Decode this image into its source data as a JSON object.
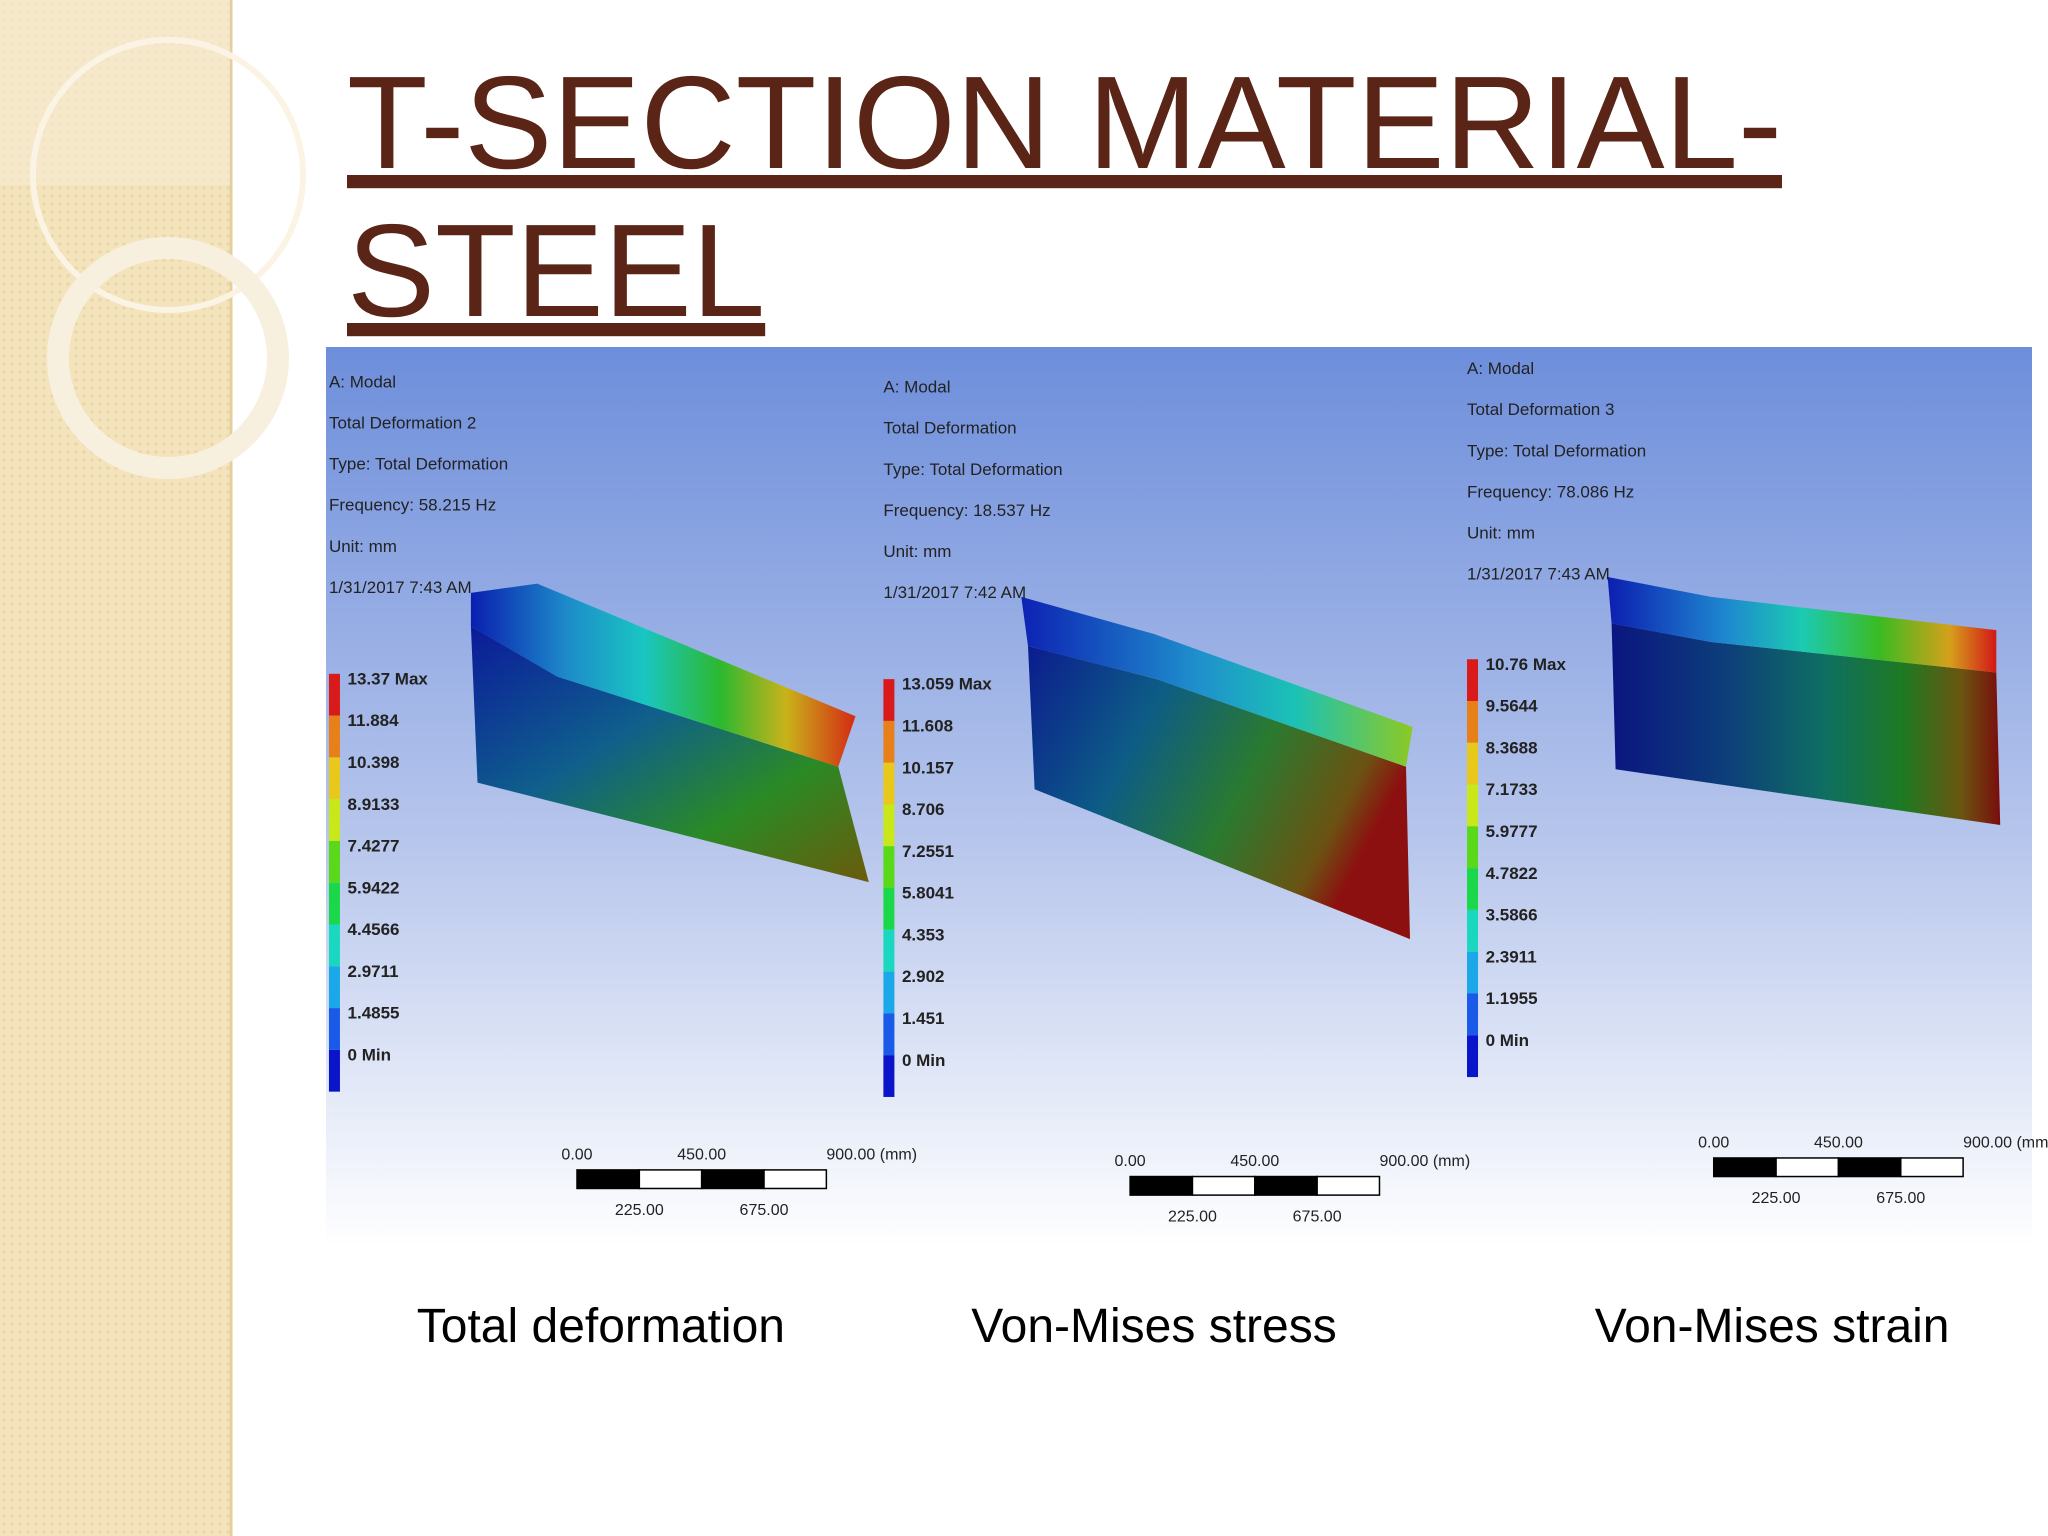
{
  "title": {
    "line1": "T-SECTION MATERIAL-",
    "line2": "STEEL"
  },
  "panels": [
    {
      "header": [
        "A: Modal",
        "Total Deformation 2",
        "Type: Total Deformation",
        "Frequency: 58.215 Hz",
        "Unit: mm",
        "1/31/2017 7:43 AM"
      ],
      "legend": [
        "13.37 Max",
        "11.884",
        "10.398",
        "8.9133",
        "7.4277",
        "5.9422",
        "4.4566",
        "2.9711",
        "1.4855",
        "0 Min"
      ],
      "scale_top": [
        "0.00",
        "450.00",
        "900.00 (mm)"
      ],
      "scale_bottom": [
        "225.00",
        "675.00"
      ],
      "caption": "Total deformation"
    },
    {
      "header": [
        "A: Modal",
        "Total Deformation",
        "Type: Total Deformation",
        "Frequency: 18.537 Hz",
        "Unit: mm",
        "1/31/2017 7:42 AM"
      ],
      "legend": [
        "13.059 Max",
        "11.608",
        "10.157",
        "8.706",
        "7.2551",
        "5.8041",
        "4.353",
        "2.902",
        "1.451",
        "0 Min"
      ],
      "scale_top": [
        "0.00",
        "450.00",
        "900.00 (mm)"
      ],
      "scale_bottom": [
        "225.00",
        "675.00"
      ],
      "caption": "Von-Mises stress"
    },
    {
      "header": [
        "A: Modal",
        "Total Deformation 3",
        "Type: Total Deformation",
        "Frequency: 78.086 Hz",
        "Unit: mm",
        "1/31/2017 7:43 AM"
      ],
      "legend": [
        "10.76 Max",
        "9.5644",
        "8.3688",
        "7.1733",
        "5.9777",
        "4.7822",
        "3.5866",
        "2.3911",
        "1.1955",
        "0 Min"
      ],
      "scale_top": [
        "0.00",
        "450.00",
        "900.00 (mm)"
      ],
      "scale_bottom": [
        "225.00",
        "675.00"
      ],
      "caption": "Von-Mises strain"
    }
  ]
}
